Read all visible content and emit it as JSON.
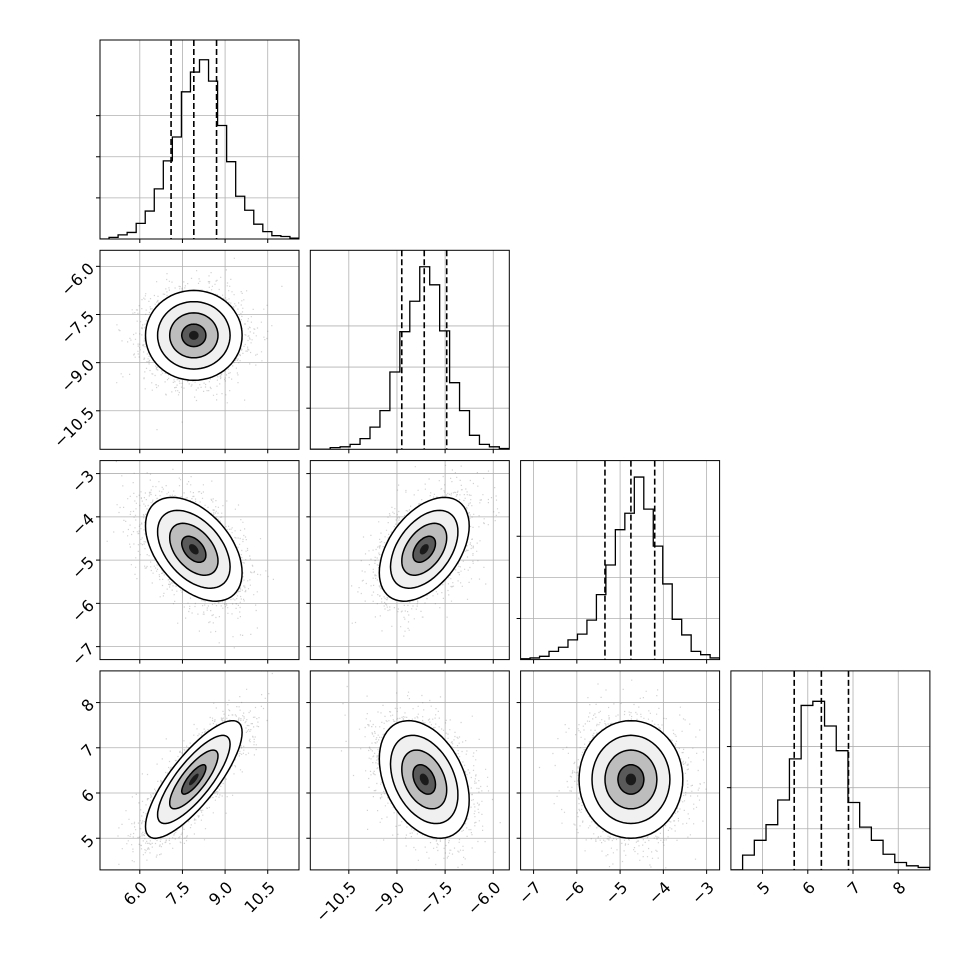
{
  "chart_data": {
    "type": "corner",
    "parameters": [
      {
        "range": [
          4.6,
          11.6
        ],
        "ticks": [
          6.0,
          7.5,
          9.0,
          10.5
        ],
        "tick_labels": [
          "6.0",
          "7.5",
          "9.0",
          "10.5"
        ],
        "hist_peak": 0.022,
        "quantiles": [
          7.1,
          7.9,
          8.7
        ],
        "label": ""
      },
      {
        "range": [
          -11.7,
          -5.5
        ],
        "ticks": [
          -10.5,
          -9.0,
          -7.5,
          -6.0
        ],
        "tick_labels": [
          "−10.5",
          "−9.0",
          "−7.5",
          "−6.0"
        ],
        "hist_peak": 0.022,
        "quantiles": [
          -8.85,
          -8.15,
          -7.45
        ],
        "label": ""
      },
      {
        "range": [
          -7.3,
          -2.7
        ],
        "ticks": [
          -7,
          -6,
          -5,
          -4,
          -3
        ],
        "tick_labels": [
          "−7",
          "−6",
          "−5",
          "−4",
          "−3"
        ],
        "hist_peak": 0.022,
        "quantiles": [
          -5.35,
          -4.75,
          -4.2
        ],
        "label": ""
      },
      {
        "range": [
          4.3,
          8.7
        ],
        "ticks": [
          5,
          6,
          7,
          8
        ],
        "tick_labels": [
          "5",
          "6",
          "7",
          "8"
        ],
        "hist_peak": 0.022,
        "quantiles": [
          5.7,
          6.3,
          6.9
        ],
        "label": ""
      }
    ],
    "histograms": [
      [
        0.0,
        0.0002,
        0.0005,
        0.0008,
        0.0019,
        0.0034,
        0.0061,
        0.0095,
        0.0124,
        0.0179,
        0.0203,
        0.0218,
        0.0192,
        0.0138,
        0.0094,
        0.0052,
        0.0035,
        0.0018,
        0.0009,
        0.0004,
        0.0003,
        0.0001
      ],
      [
        0.0,
        0.0,
        0.0002,
        0.0003,
        0.0006,
        0.0013,
        0.0027,
        0.0047,
        0.0094,
        0.0143,
        0.018,
        0.0222,
        0.02,
        0.0144,
        0.0081,
        0.0047,
        0.0017,
        0.0006,
        0.0003,
        0.0001
      ],
      [
        0.0001,
        0.0002,
        0.0004,
        0.001,
        0.0015,
        0.0024,
        0.0031,
        0.0048,
        0.0079,
        0.0115,
        0.0158,
        0.0178,
        0.0222,
        0.0183,
        0.0138,
        0.0092,
        0.0049,
        0.003,
        0.001,
        0.0006,
        0.0002
      ],
      [
        0.0,
        0.0018,
        0.0036,
        0.0055,
        0.0085,
        0.0135,
        0.02,
        0.0205,
        0.0175,
        0.0145,
        0.0082,
        0.0052,
        0.0036,
        0.0019,
        0.0009,
        0.0005,
        0.0003
      ]
    ],
    "means": [
      7.9,
      -8.15,
      -4.75,
      6.3
    ],
    "sigmas": [
      0.85,
      0.7,
      0.6,
      0.65
    ],
    "correlations": [
      [
        1.0,
        0.0,
        -0.45,
        0.8
      ],
      [
        0.0,
        1.0,
        0.45,
        -0.35
      ],
      [
        -0.45,
        0.45,
        1.0,
        0.0
      ],
      [
        0.8,
        -0.35,
        0.0,
        1.0
      ]
    ],
    "contour_levels_sigma": [
      0.5,
      1.0,
      1.5,
      2.0
    ],
    "grid": true,
    "title": "",
    "legend": "none"
  },
  "colors": {
    "points": "#7f7f7f",
    "lines": "#000000",
    "grid": "#b0b0b0",
    "background": "#ffffff"
  }
}
